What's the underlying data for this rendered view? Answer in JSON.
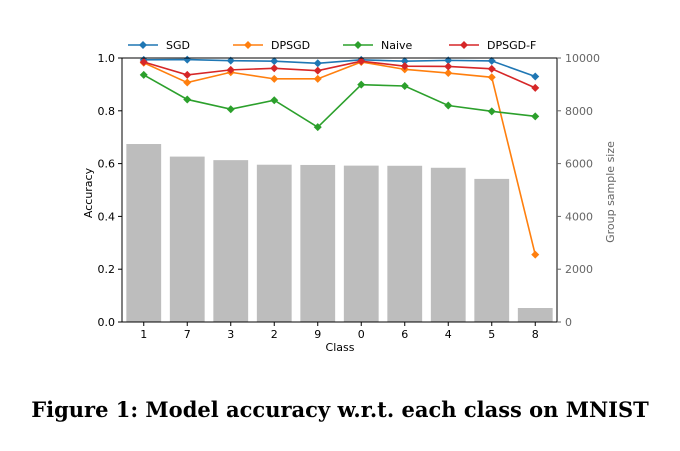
{
  "caption": "Figure 1: Model accuracy w.r.t. each class on MNIST",
  "chart_data": {
    "type": "line",
    "categories": [
      "1",
      "7",
      "3",
      "2",
      "9",
      "0",
      "6",
      "4",
      "5",
      "8"
    ],
    "xlabel": "Class",
    "ylabel": "Accuracy",
    "ylabel_right": "Group sample size",
    "ylim": [
      0.0,
      1.0
    ],
    "ylim_right": [
      0,
      10000
    ],
    "yticks": [
      "0.0",
      "0.2",
      "0.4",
      "0.6",
      "0.8",
      "1.0"
    ],
    "yticks_right": [
      "0",
      "2000",
      "4000",
      "6000",
      "8000",
      "10000"
    ],
    "legend_placement": "top",
    "bars": {
      "color": "#bdbdbd",
      "values": [
        6742,
        6265,
        6131,
        5958,
        5949,
        5923,
        5918,
        5842,
        5421,
        530
      ]
    },
    "series": [
      {
        "name": "SGD",
        "color": "#1f77b4",
        "marker": "diamond",
        "values": [
          0.993,
          0.994,
          0.99,
          0.988,
          0.98,
          0.993,
          0.988,
          0.991,
          0.989,
          0.93
        ]
      },
      {
        "name": "DPSGD",
        "color": "#ff7f0e",
        "marker": "diamond",
        "values": [
          0.982,
          0.907,
          0.946,
          0.921,
          0.921,
          0.985,
          0.957,
          0.943,
          0.927,
          0.255
        ]
      },
      {
        "name": "Naive",
        "color": "#2ca02c",
        "marker": "diamond",
        "values": [
          0.936,
          0.843,
          0.806,
          0.84,
          0.738,
          0.899,
          0.894,
          0.82,
          0.798,
          0.779
        ]
      },
      {
        "name": "DPSGD-F",
        "color": "#d62728",
        "marker": "diamond",
        "values": [
          0.985,
          0.936,
          0.955,
          0.961,
          0.952,
          0.988,
          0.969,
          0.968,
          0.959,
          0.887
        ]
      }
    ]
  }
}
